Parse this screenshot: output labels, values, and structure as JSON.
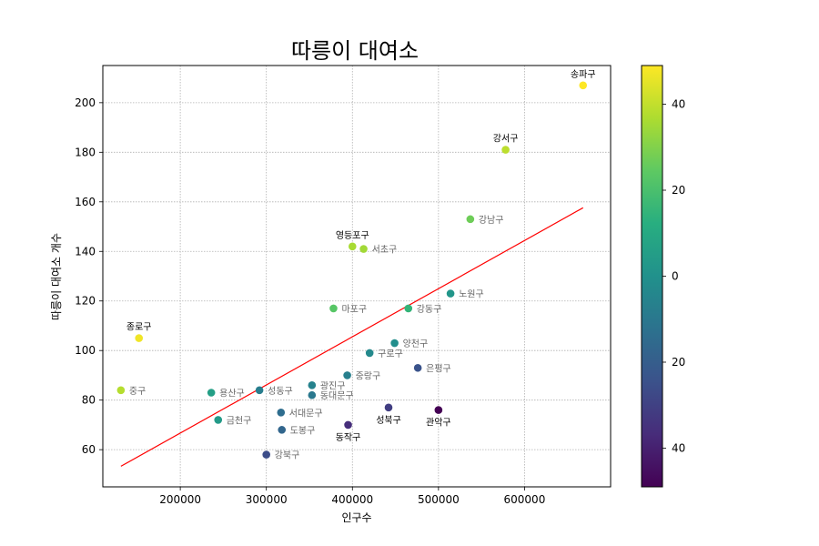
{
  "chart_data": {
    "type": "scatter",
    "title": "따릉이 대여소",
    "xlabel": "인구수",
    "ylabel": "따릉이 대여소 개수",
    "xlim": [
      110000,
      700000
    ],
    "ylim": [
      45,
      215
    ],
    "xticks": [
      200000,
      300000,
      400000,
      500000,
      600000
    ],
    "yticks": [
      60,
      80,
      100,
      120,
      140,
      160,
      180,
      200
    ],
    "grid": true,
    "colormap": "viridis",
    "colorbar": {
      "range": [
        -49,
        49
      ],
      "ticks": [
        40,
        20,
        0,
        20,
        40
      ],
      "tick_values": [
        40,
        20,
        0,
        -20,
        -40
      ]
    },
    "trend_line": {
      "color": "#ff0000",
      "x": [
        131000,
        668000
      ],
      "y": [
        53.3,
        157.6
      ]
    },
    "points": [
      {
        "name": "송파구",
        "x": 668000,
        "y": 207,
        "c": 49,
        "label_style": "black"
      },
      {
        "name": "강서구",
        "x": 578000,
        "y": 181,
        "c": 39,
        "label_style": "black"
      },
      {
        "name": "강남구",
        "x": 537000,
        "y": 153,
        "c": 27,
        "label_style": "gray"
      },
      {
        "name": "영등포구",
        "x": 400000,
        "y": 142,
        "c": 36,
        "label_style": "black"
      },
      {
        "name": "서초구",
        "x": 413000,
        "y": 141,
        "c": 35,
        "label_style": "gray"
      },
      {
        "name": "노원구",
        "x": 514000,
        "y": 123,
        "c": 2,
        "label_style": "gray"
      },
      {
        "name": "마포구",
        "x": 378000,
        "y": 117,
        "c": 23,
        "label_style": "gray"
      },
      {
        "name": "강동구",
        "x": 465000,
        "y": 117,
        "c": 15,
        "label_style": "gray"
      },
      {
        "name": "종로구",
        "x": 152000,
        "y": 105,
        "c": 47,
        "label_style": "black"
      },
      {
        "name": "양천구",
        "x": 449000,
        "y": 103,
        "c": -1,
        "label_style": "gray"
      },
      {
        "name": "구로구",
        "x": 420000,
        "y": 99,
        "c": -3,
        "label_style": "gray"
      },
      {
        "name": "은평구",
        "x": 476000,
        "y": 93,
        "c": -24,
        "label_style": "gray"
      },
      {
        "name": "중랑구",
        "x": 394000,
        "y": 90,
        "c": -7,
        "label_style": "gray"
      },
      {
        "name": "광진구",
        "x": 353000,
        "y": 86,
        "c": -6,
        "label_style": "gray"
      },
      {
        "name": "중구",
        "x": 131000,
        "y": 84,
        "c": 38,
        "label_style": "gray"
      },
      {
        "name": "성동구",
        "x": 292000,
        "y": 84,
        "c": -8,
        "label_style": "gray"
      },
      {
        "name": "용산구",
        "x": 236000,
        "y": 83,
        "c": 6,
        "label_style": "gray"
      },
      {
        "name": "동대문구",
        "x": 353000,
        "y": 82,
        "c": -10,
        "label_style": "gray"
      },
      {
        "name": "성북구",
        "x": 442000,
        "y": 77,
        "c": -31,
        "label_style": "black"
      },
      {
        "name": "관악구",
        "x": 500000,
        "y": 76,
        "c": -49,
        "label_style": "black"
      },
      {
        "name": "서대문구",
        "x": 317000,
        "y": 75,
        "c": -14,
        "label_style": "gray"
      },
      {
        "name": "금천구",
        "x": 244000,
        "y": 72,
        "c": 4,
        "label_style": "gray"
      },
      {
        "name": "동작구",
        "x": 395000,
        "y": 70,
        "c": -36,
        "label_style": "black"
      },
      {
        "name": "도봉구",
        "x": 318000,
        "y": 68,
        "c": -17,
        "label_style": "gray"
      },
      {
        "name": "강북구",
        "x": 300000,
        "y": 58,
        "c": -26,
        "label_style": "gray"
      }
    ]
  }
}
